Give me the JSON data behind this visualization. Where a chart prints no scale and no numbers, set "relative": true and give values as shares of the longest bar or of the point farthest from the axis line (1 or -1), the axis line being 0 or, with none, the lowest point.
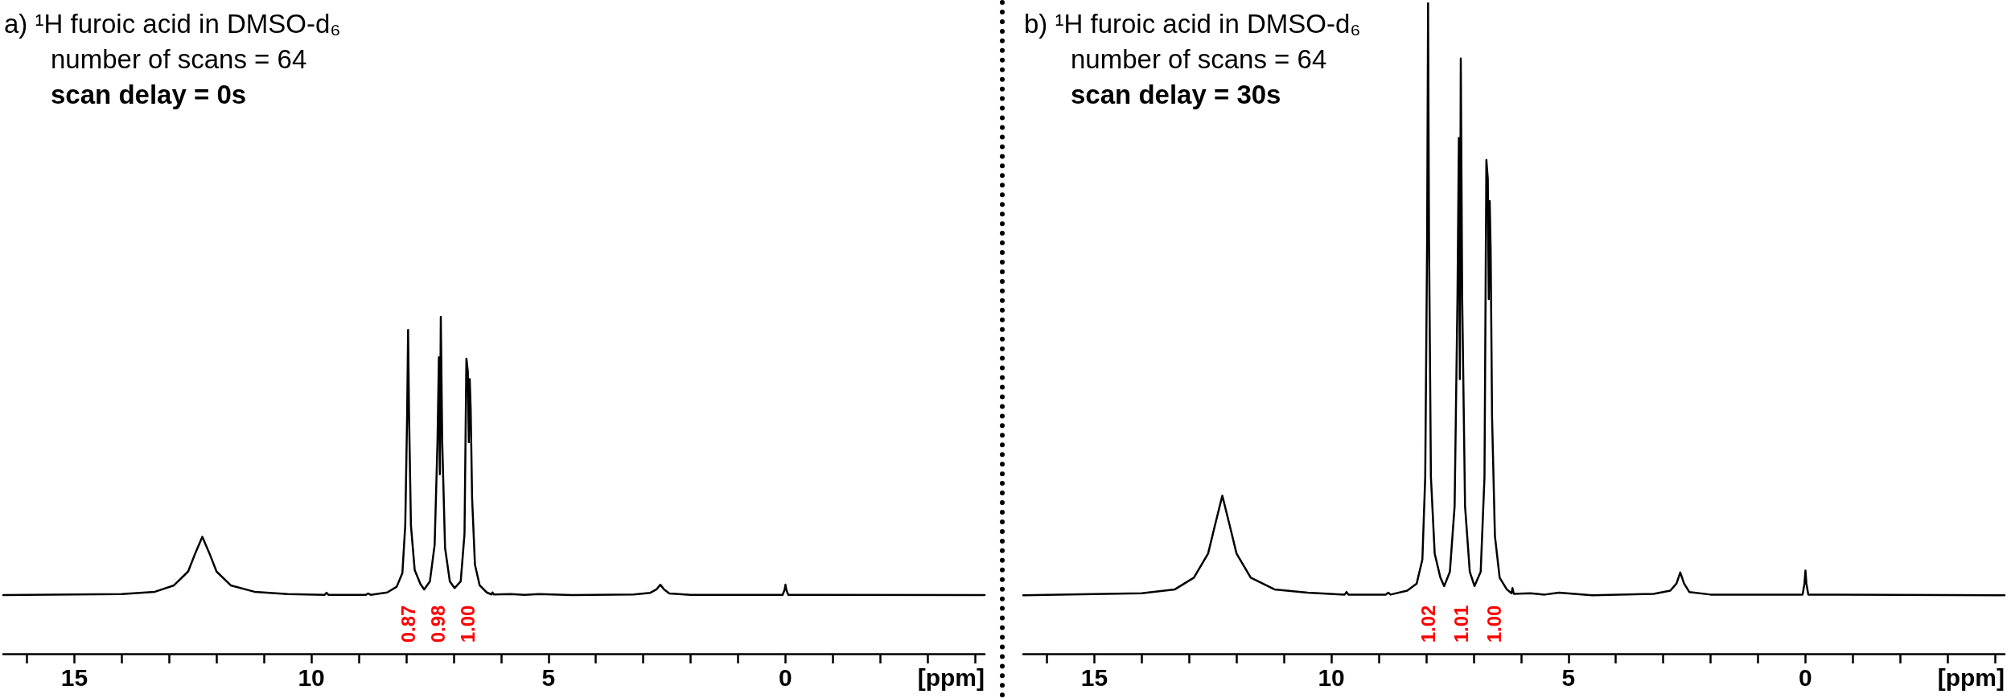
{
  "chart_data": [
    {
      "type": "line",
      "title": "a) ¹H furoic acid in DMSO-d₆",
      "subtitle": "number of scans = 64",
      "xlabel": "[ppm]",
      "relative": true,
      "marker": "none",
      "line_style": "solid",
      "annotations": [
        "scan delay = 0s",
        "0.87",
        "0.98",
        "1.00"
      ],
      "xlim": [
        16.5,
        -4.2
      ],
      "xticks": [
        {
          "value": 16,
          "label": null
        },
        15,
        {
          "value": 14,
          "label": null
        },
        {
          "value": 13,
          "label": null
        },
        {
          "value": 12,
          "label": null
        },
        {
          "value": 11,
          "label": null
        },
        10,
        {
          "value": 9,
          "label": null
        },
        {
          "value": 8,
          "label": null
        },
        {
          "value": 7,
          "label": null
        },
        {
          "value": 6,
          "label": null
        },
        5,
        {
          "value": 4,
          "label": null
        },
        {
          "value": 3,
          "label": null
        },
        {
          "value": 2,
          "label": null
        },
        {
          "value": 1,
          "label": null
        },
        0,
        {
          "value": -1,
          "label": null
        },
        {
          "value": -2,
          "label": null
        },
        {
          "value": -3,
          "label": null
        },
        {
          "value": -4,
          "label": null
        }
      ],
      "x": [
        16.5,
        14,
        13.3,
        12.9,
        12.6,
        12.45,
        12.3,
        12.15,
        12,
        11.7,
        11.2,
        10.5,
        9.72,
        9.68,
        9.64,
        8.85,
        8.8,
        8.75,
        8.4,
        8.2,
        8.08,
        8.02,
        7.98,
        7.96,
        7.94,
        7.9,
        7.82,
        7.7,
        7.62,
        7.5,
        7.4,
        7.34,
        7.31,
        7.29,
        7.27,
        7.24,
        7.18,
        7.08,
        6.98,
        6.85,
        6.77,
        6.73,
        6.7,
        6.68,
        6.66,
        6.64,
        6.61,
        6.55,
        6.45,
        6.3,
        6.2,
        6.18,
        6.15,
        5.8,
        5.5,
        5.2,
        4.5,
        3.2,
        2.85,
        2.72,
        2.64,
        2.56,
        2.45,
        2,
        0.06,
        0.02,
        0,
        -0.02,
        -0.06,
        -4.2
      ],
      "series": [
        {
          "color": "#000000",
          "values": [
            0.174,
            0.177,
            0.184,
            0.203,
            0.244,
            0.298,
            0.347,
            0.298,
            0.244,
            0.203,
            0.184,
            0.177,
            0.175,
            0.181,
            0.175,
            0.175,
            0.179,
            0.175,
            0.182,
            0.199,
            0.24,
            0.381,
            0.711,
            0.961,
            0.711,
            0.381,
            0.248,
            0.207,
            0.191,
            0.215,
            0.323,
            0.628,
            0.88,
            0.533,
            1,
            0.628,
            0.314,
            0.215,
            0.195,
            0.215,
            0.356,
            0.876,
            0.838,
            0.628,
            0.815,
            0.728,
            0.463,
            0.265,
            0.203,
            0.182,
            0.176,
            0.182,
            0.176,
            0.177,
            0.175,
            0.177,
            0.174,
            0.176,
            0.181,
            0.191,
            0.205,
            0.191,
            0.179,
            0.175,
            0.175,
            0.189,
            0.205,
            0.189,
            0.175,
            0.174
          ]
        }
      ]
    },
    {
      "type": "line",
      "title": "b) ¹H furoic acid in DMSO-d₆",
      "subtitle": "number of scans = 64",
      "xlabel": "[ppm]",
      "relative": true,
      "marker": "none",
      "line_style": "solid",
      "annotations": [
        "scan delay = 30s",
        "1.02",
        "1.01",
        "1.00"
      ],
      "xlim": [
        16.5,
        -4.2
      ],
      "xticks": [
        {
          "value": 16,
          "label": null
        },
        15,
        {
          "value": 14,
          "label": null
        },
        {
          "value": 13,
          "label": null
        },
        {
          "value": 12,
          "label": null
        },
        {
          "value": 11,
          "label": null
        },
        10,
        {
          "value": 9,
          "label": null
        },
        {
          "value": 8,
          "label": null
        },
        {
          "value": 7,
          "label": null
        },
        {
          "value": 6,
          "label": null
        },
        5,
        {
          "value": 4,
          "label": null
        },
        {
          "value": 3,
          "label": null
        },
        {
          "value": 2,
          "label": null
        },
        {
          "value": 1,
          "label": null
        },
        0,
        {
          "value": -1,
          "label": null
        },
        {
          "value": -2,
          "label": null
        },
        {
          "value": -3,
          "label": null
        },
        {
          "value": -4,
          "label": null
        }
      ],
      "x": [
        16.5,
        14,
        13.3,
        12.9,
        12.6,
        12.45,
        12.3,
        12.15,
        12,
        11.7,
        11.2,
        10.5,
        9.72,
        9.68,
        9.64,
        8.85,
        8.8,
        8.75,
        8.4,
        8.2,
        8.08,
        8.02,
        7.98,
        7.96,
        7.94,
        7.9,
        7.82,
        7.7,
        7.62,
        7.5,
        7.4,
        7.34,
        7.31,
        7.29,
        7.27,
        7.24,
        7.18,
        7.08,
        6.98,
        6.85,
        6.77,
        6.73,
        6.7,
        6.68,
        6.66,
        6.64,
        6.61,
        6.55,
        6.45,
        6.3,
        6.2,
        6.18,
        6.15,
        5.8,
        5.5,
        5.2,
        4.5,
        3.2,
        2.85,
        2.72,
        2.64,
        2.56,
        2.45,
        2,
        0.06,
        0.02,
        0,
        -0.02,
        -0.06,
        -4.2
      ],
      "series": [
        {
          "color": "#000000",
          "values": [
            0.09,
            0.093,
            0.099,
            0.117,
            0.154,
            0.199,
            0.243,
            0.199,
            0.154,
            0.117,
            0.099,
            0.094,
            0.091,
            0.095,
            0.091,
            0.091,
            0.094,
            0.091,
            0.097,
            0.108,
            0.145,
            0.272,
            0.636,
            1,
            0.636,
            0.272,
            0.154,
            0.117,
            0.104,
            0.126,
            0.227,
            0.545,
            0.793,
            0.422,
            0.915,
            0.545,
            0.227,
            0.126,
            0.104,
            0.126,
            0.272,
            0.759,
            0.73,
            0.545,
            0.696,
            0.621,
            0.363,
            0.181,
            0.117,
            0.099,
            0.093,
            0.101,
            0.092,
            0.093,
            0.091,
            0.094,
            0.09,
            0.092,
            0.097,
            0.108,
            0.125,
            0.108,
            0.095,
            0.091,
            0.091,
            0.108,
            0.128,
            0.108,
            0.091,
            0.09
          ]
        }
      ]
    }
  ]
}
